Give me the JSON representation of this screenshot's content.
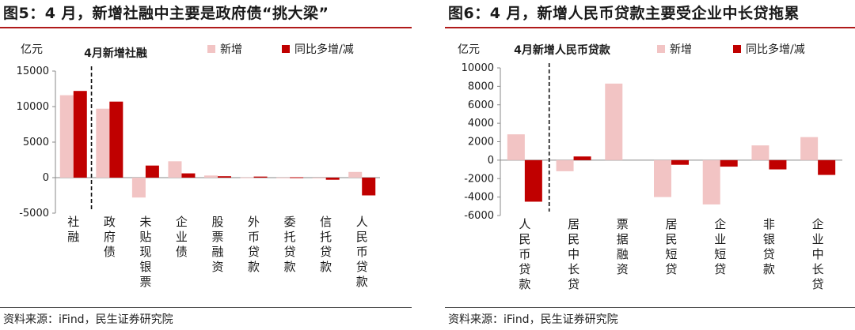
{
  "charts": [
    {
      "fig_title": "图5：4 月，新增社融中主要是政府债“挑大梁”",
      "source": "资料来源：iFind，民生证券研究院",
      "chart_data": {
        "type": "bar",
        "title": "4月新增社融",
        "ylabel": "亿元",
        "ylim": [
          -5000,
          15000
        ],
        "yticks": [
          15000,
          10000,
          5000,
          0,
          -5000
        ],
        "categories": [
          "社融",
          "政府债",
          "未贴现银票",
          "企业债",
          "股票融资",
          "外币贷款",
          "委托贷款",
          "信托贷款",
          "人民币贷款"
        ],
        "series": [
          {
            "name": "新增",
            "color": "#f2c4c4",
            "values": [
              11600,
              9700,
              -2800,
              2300,
              300,
              30,
              20,
              -100,
              800
            ]
          },
          {
            "name": "同比多增/减",
            "color": "#c00000",
            "values": [
              12200,
              10700,
              1700,
              600,
              200,
              150,
              50,
              -300,
              -2500
            ]
          }
        ],
        "divider_after_index": 0,
        "legend": "top-right",
        "grid": false
      }
    },
    {
      "fig_title": "图6：4 月，新增人民币贷款主要受企业中长贷拖累",
      "source": "资料来源：iFind，民生证券研究院",
      "chart_data": {
        "type": "bar",
        "title": "4月新增人民币贷款",
        "ylabel": "亿元",
        "ylim": [
          -6000,
          10000
        ],
        "yticks": [
          10000,
          8000,
          6000,
          4000,
          2000,
          0,
          -2000,
          -4000,
          -6000
        ],
        "categories": [
          "人民币贷款",
          "居民中长贷",
          "票据融资",
          "居民短贷",
          "企业短贷",
          "非银贷款",
          "企业中长贷"
        ],
        "series": [
          {
            "name": "新增",
            "color": "#f2c4c4",
            "values": [
              2800,
              -1200,
              8300,
              -4000,
              -4800,
              1600,
              2500
            ]
          },
          {
            "name": "同比多增/减",
            "color": "#c00000",
            "values": [
              -4500,
              400,
              0,
              -500,
              -700,
              -1000,
              -1600
            ]
          }
        ],
        "divider_after_index": 0,
        "legend": "top-right",
        "grid": false
      }
    }
  ]
}
